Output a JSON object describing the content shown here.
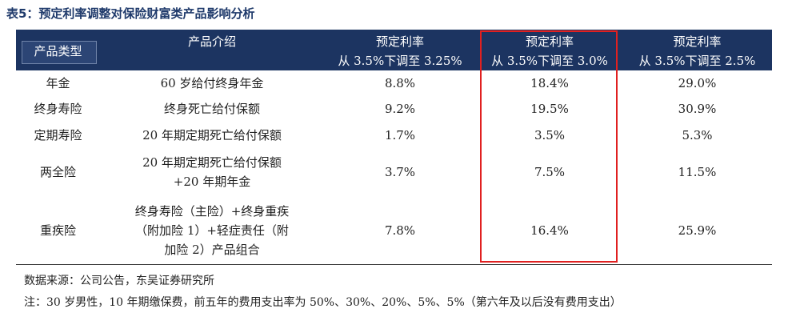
{
  "header": {
    "title": "表5：预定利率调整对保险财富类产品影响分析"
  },
  "table": {
    "columns": [
      [
        "产品类型"
      ],
      [
        "产品介绍"
      ],
      [
        "预定利率",
        "从 3.5%下调至 3.25%"
      ],
      [
        "预定利率",
        "从 3.5%下调至 3.0%"
      ],
      [
        "预定利率",
        "从 3.5%下调至 2.5%"
      ]
    ],
    "rows": [
      {
        "type": "年金",
        "intro": [
          "60 岁给付终身年金"
        ],
        "values": [
          "8.8%",
          "18.4%",
          "29.0%"
        ]
      },
      {
        "type": "终身寿险",
        "intro": [
          "终身死亡给付保额"
        ],
        "values": [
          "9.2%",
          "19.5%",
          "30.9%"
        ]
      },
      {
        "type": "定期寿险",
        "intro": [
          "20 年期定期死亡给付保额"
        ],
        "values": [
          "1.7%",
          "3.5%",
          "5.3%"
        ]
      },
      {
        "type": "两全险",
        "intro": [
          "20 年期定期死亡给付保额",
          "+20 年期年金"
        ],
        "values": [
          "3.7%",
          "7.5%",
          "11.5%"
        ]
      },
      {
        "type": "重疾险",
        "intro": [
          "终身寿险（主险）+终身重疾",
          "（附加险 1）+轻症责任（附",
          "加险 2）产品组合"
        ],
        "values": [
          "7.8%",
          "16.4%",
          "25.9%"
        ]
      }
    ]
  },
  "footer": {
    "source": "数据来源：公司公告，东吴证券研究所",
    "note": "注：30 岁男性，10 年期缴保费，前五年的费用支出率为 50%、30%、20%、5%、5%（第六年及以后没有费用支出）"
  }
}
